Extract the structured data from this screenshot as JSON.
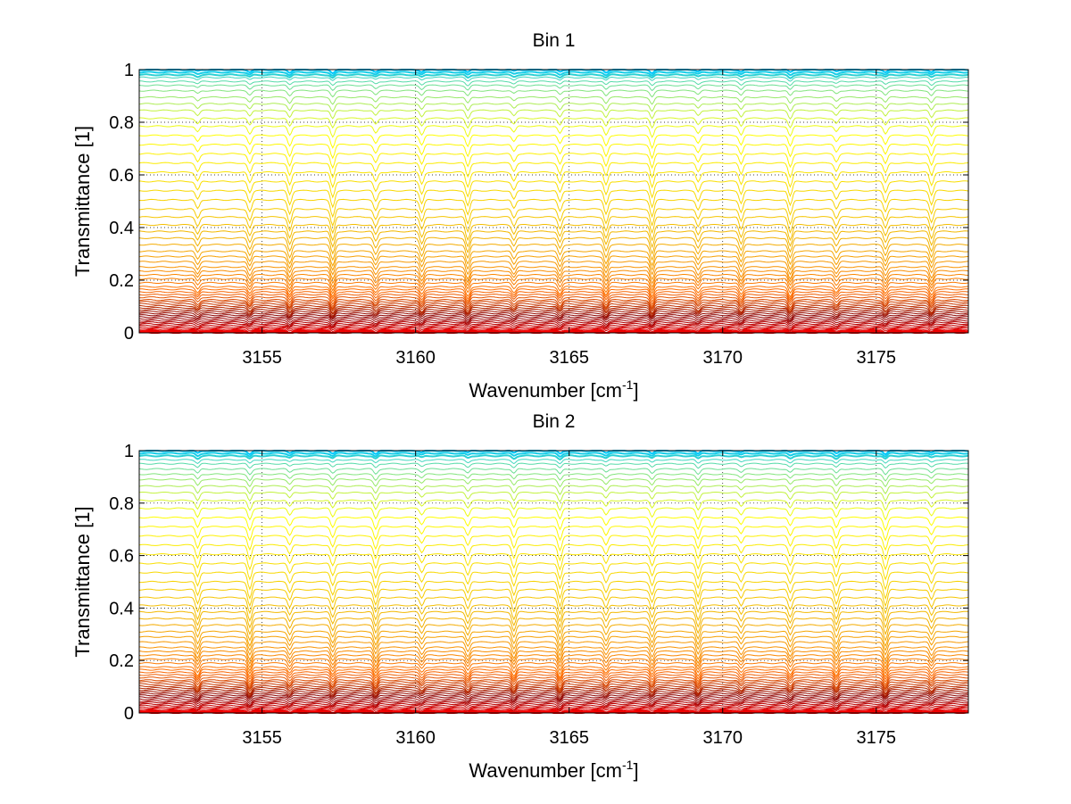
{
  "chart_data": [
    {
      "type": "line",
      "title": "Bin 1",
      "xlabel": "Wavenumber [cm",
      "xlabel_sup": "-1",
      "xlabel_end": "]",
      "ylabel": "Transmittance [1]",
      "xlim": [
        3151,
        3178
      ],
      "ylim": [
        0,
        1
      ],
      "xticks": [
        3155,
        3160,
        3165,
        3170,
        3175
      ],
      "xtick_labels": [
        "3155",
        "3160",
        "3165",
        "3170",
        "3175"
      ],
      "yticks": [
        0,
        0.2,
        0.4,
        0.6,
        0.8,
        1
      ],
      "ytick_labels": [
        "0",
        "0.2",
        "0.4",
        "0.6",
        "0.8",
        "1"
      ],
      "grid": true,
      "series_count": 60,
      "line_baselines": [
        1.0,
        0.99,
        0.98,
        0.97,
        0.955,
        0.94,
        0.92,
        0.895,
        0.87,
        0.845,
        0.815,
        0.785,
        0.75,
        0.715,
        0.68,
        0.645,
        0.61,
        0.575,
        0.54,
        0.505,
        0.47,
        0.44,
        0.41,
        0.385,
        0.36,
        0.335,
        0.31,
        0.29,
        0.27,
        0.25,
        0.235,
        0.22,
        0.205,
        0.19,
        0.175,
        0.165,
        0.155,
        0.145,
        0.135,
        0.125,
        0.118,
        0.11,
        0.102,
        0.095,
        0.088,
        0.081,
        0.074,
        0.067,
        0.06,
        0.053,
        0.046,
        0.04,
        0.034,
        0.028,
        0.022,
        0.017,
        0.012,
        0.008,
        0.004,
        0.001
      ],
      "absorption_lines": [
        3152.9,
        3154.6,
        3155.9,
        3157.3,
        3158.7,
        3160.2,
        3161.7,
        3163.2,
        3164.7,
        3166.2,
        3167.7,
        3169.2,
        3170.6,
        3172.2,
        3173.7,
        3175.3,
        3176.8
      ],
      "line_colors": [
        "#00c8ff",
        "#ffff00",
        "#f2b400",
        "#ff6a00",
        "#8b0000",
        "#ff0000"
      ]
    },
    {
      "type": "line",
      "title": "Bin 2",
      "xlabel": "Wavenumber [cm",
      "xlabel_sup": "-1",
      "xlabel_end": "]",
      "ylabel": "Transmittance [1]",
      "xlim": [
        3151,
        3178
      ],
      "ylim": [
        0,
        1
      ],
      "xticks": [
        3155,
        3160,
        3165,
        3170,
        3175
      ],
      "xtick_labels": [
        "3155",
        "3160",
        "3165",
        "3170",
        "3175"
      ],
      "yticks": [
        0,
        0.2,
        0.4,
        0.6,
        0.8,
        1
      ],
      "ytick_labels": [
        "0",
        "0.2",
        "0.4",
        "0.6",
        "0.8",
        "1"
      ],
      "grid": true,
      "series_count": 60,
      "line_baselines": [
        1.0,
        0.99,
        0.98,
        0.965,
        0.95,
        0.93,
        0.91,
        0.89,
        0.865,
        0.84,
        0.81,
        0.78,
        0.745,
        0.71,
        0.675,
        0.64,
        0.605,
        0.57,
        0.535,
        0.5,
        0.47,
        0.44,
        0.41,
        0.385,
        0.36,
        0.335,
        0.31,
        0.29,
        0.27,
        0.25,
        0.235,
        0.22,
        0.205,
        0.19,
        0.175,
        0.165,
        0.155,
        0.145,
        0.135,
        0.125,
        0.118,
        0.11,
        0.102,
        0.095,
        0.088,
        0.081,
        0.074,
        0.067,
        0.06,
        0.053,
        0.046,
        0.04,
        0.034,
        0.028,
        0.022,
        0.017,
        0.012,
        0.008,
        0.004,
        0.001
      ],
      "absorption_lines": [
        3152.9,
        3154.6,
        3155.9,
        3157.3,
        3158.7,
        3160.2,
        3161.7,
        3163.2,
        3164.7,
        3166.2,
        3167.7,
        3169.2,
        3170.6,
        3172.2,
        3173.7,
        3175.3,
        3176.8
      ],
      "line_colors": [
        "#00c8ff",
        "#ffff00",
        "#f2b400",
        "#ff6a00",
        "#8b0000",
        "#ff0000"
      ]
    }
  ]
}
